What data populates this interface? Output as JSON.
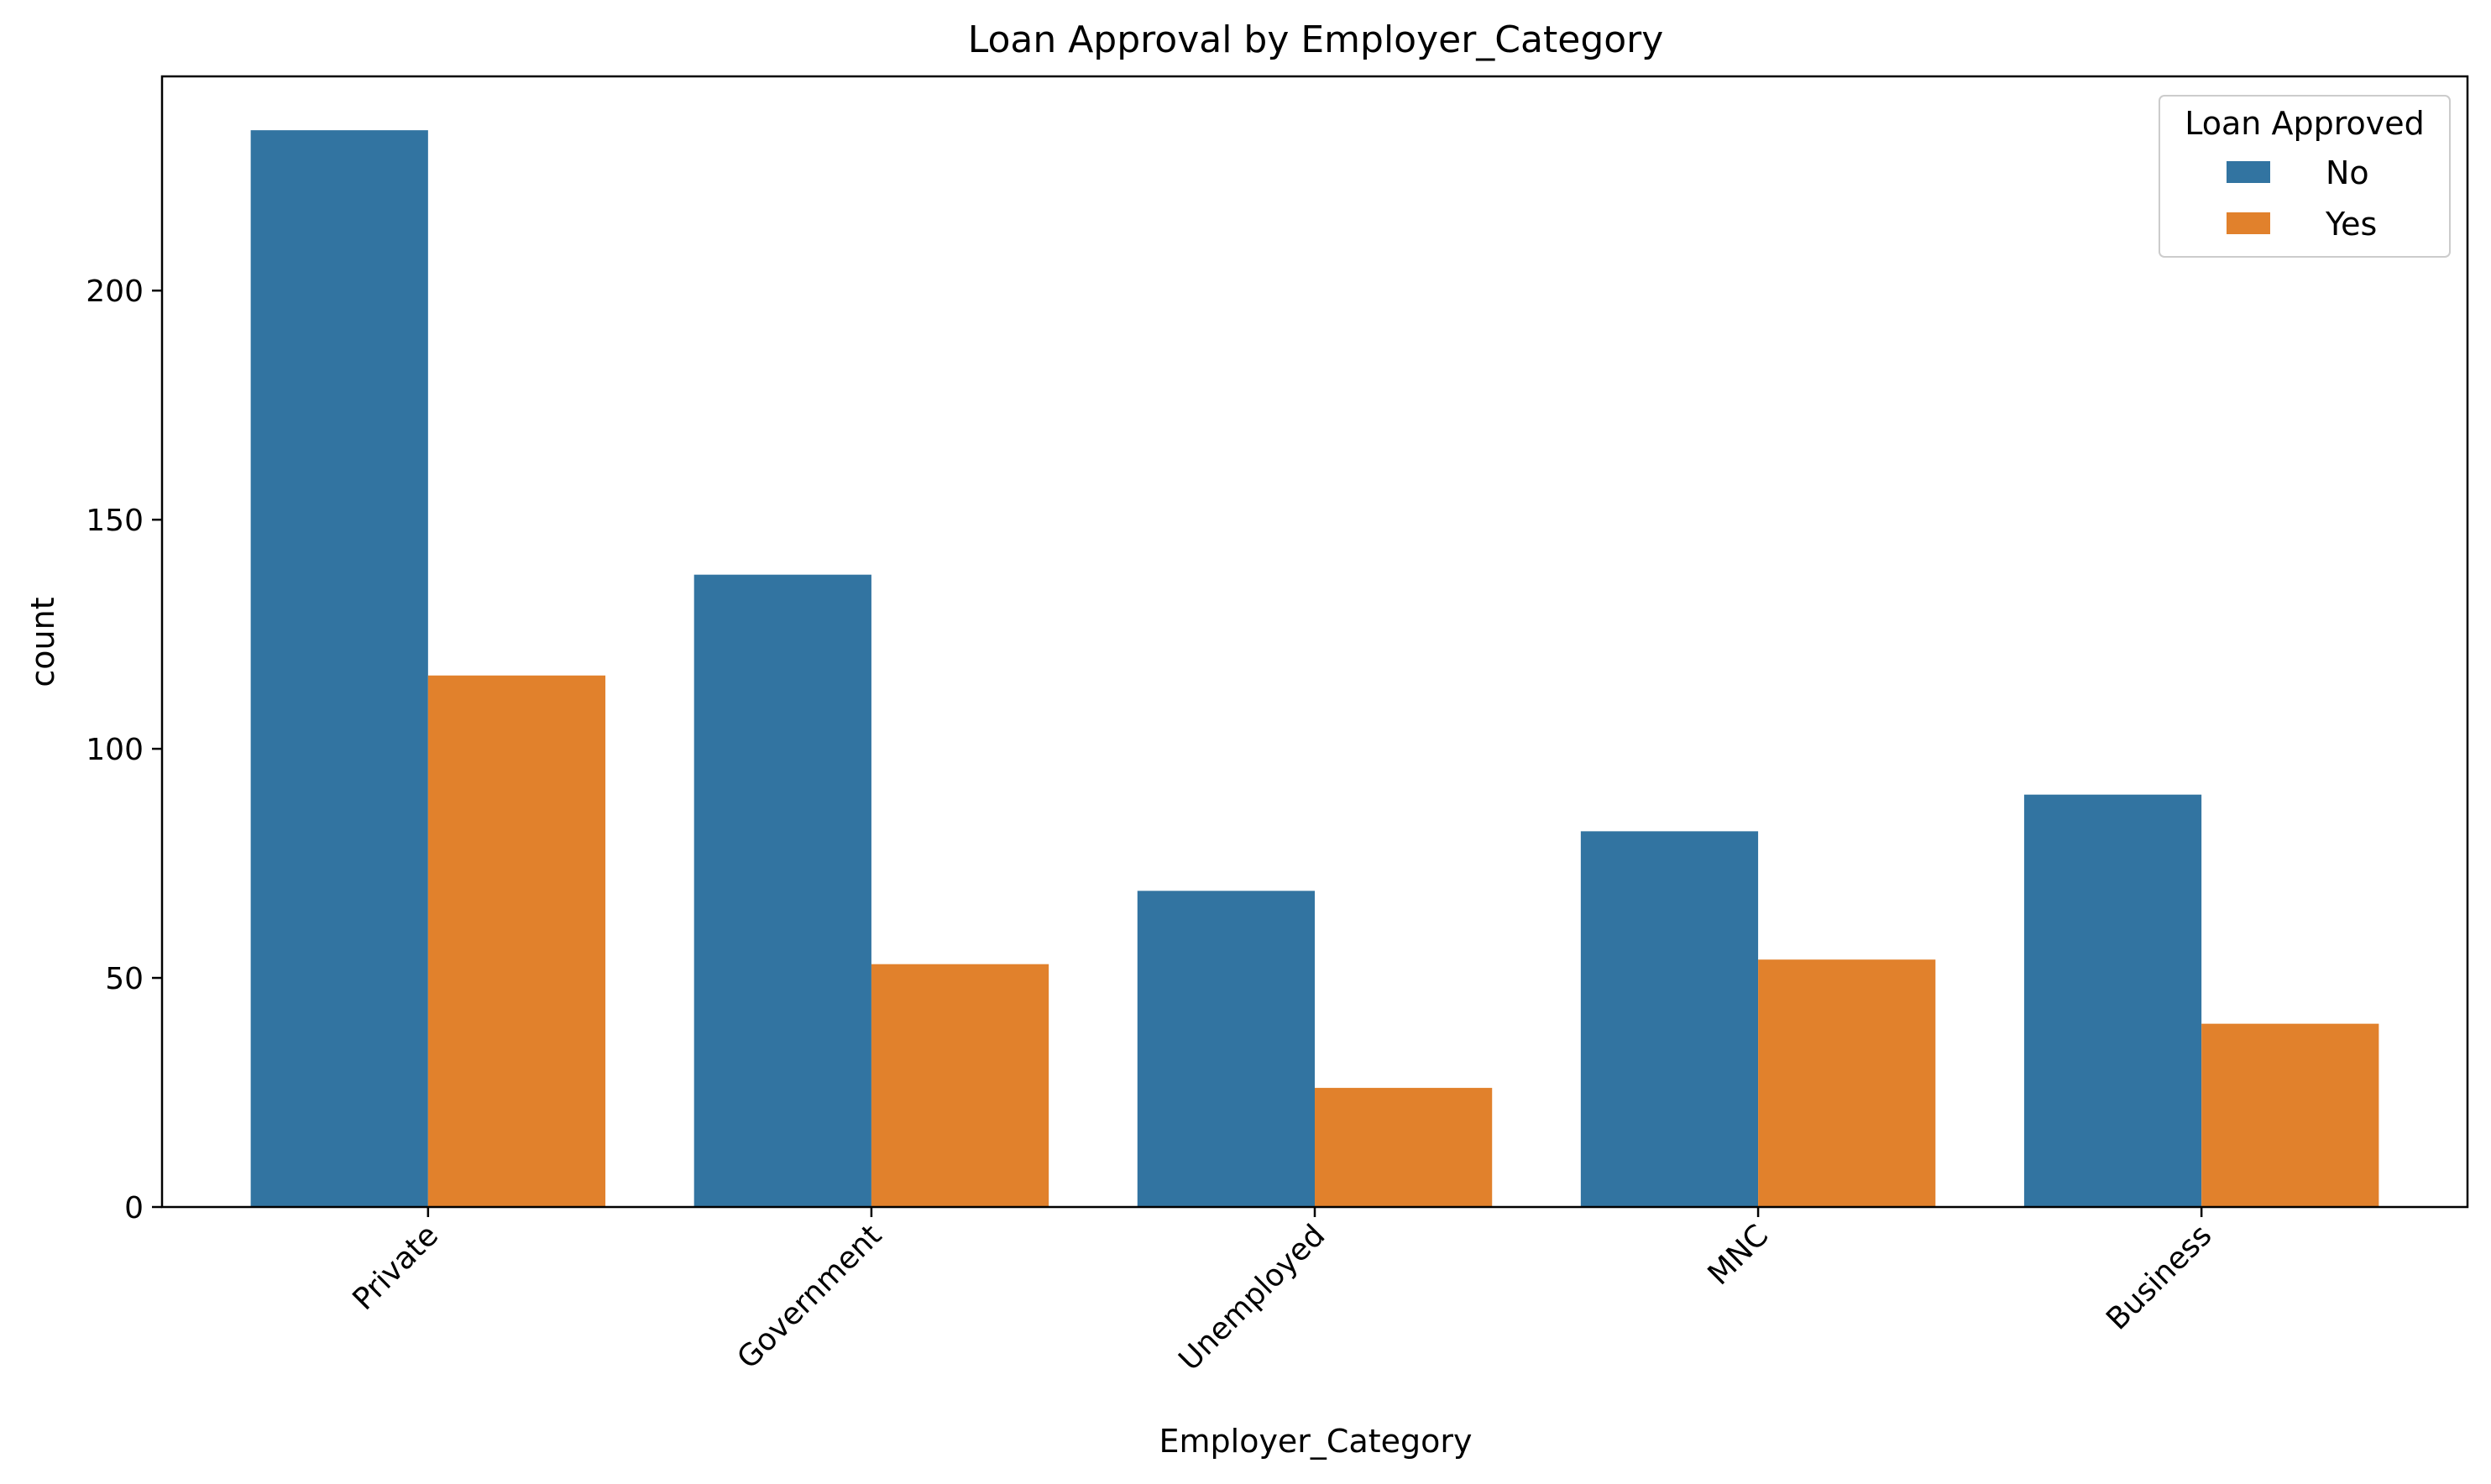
{
  "chart_data": {
    "type": "bar",
    "title": "Loan Approval by Employer_Category",
    "xlabel": "Employer_Category",
    "ylabel": "count",
    "categories": [
      "Private",
      "Government",
      "Unemployed",
      "MNC",
      "Business"
    ],
    "series": [
      {
        "name": "No",
        "values": [
          235,
          138,
          69,
          82,
          90
        ],
        "color": "#3274a1"
      },
      {
        "name": "Yes",
        "values": [
          116,
          53,
          26,
          54,
          40
        ],
        "color": "#e1812c"
      }
    ],
    "yticks": [
      0,
      50,
      100,
      150,
      200
    ],
    "ylim": [
      0,
      246.75
    ],
    "grid": false,
    "legend": {
      "title": "Loan Approved",
      "placement": "top-right"
    },
    "xtick_rotation": 45
  }
}
